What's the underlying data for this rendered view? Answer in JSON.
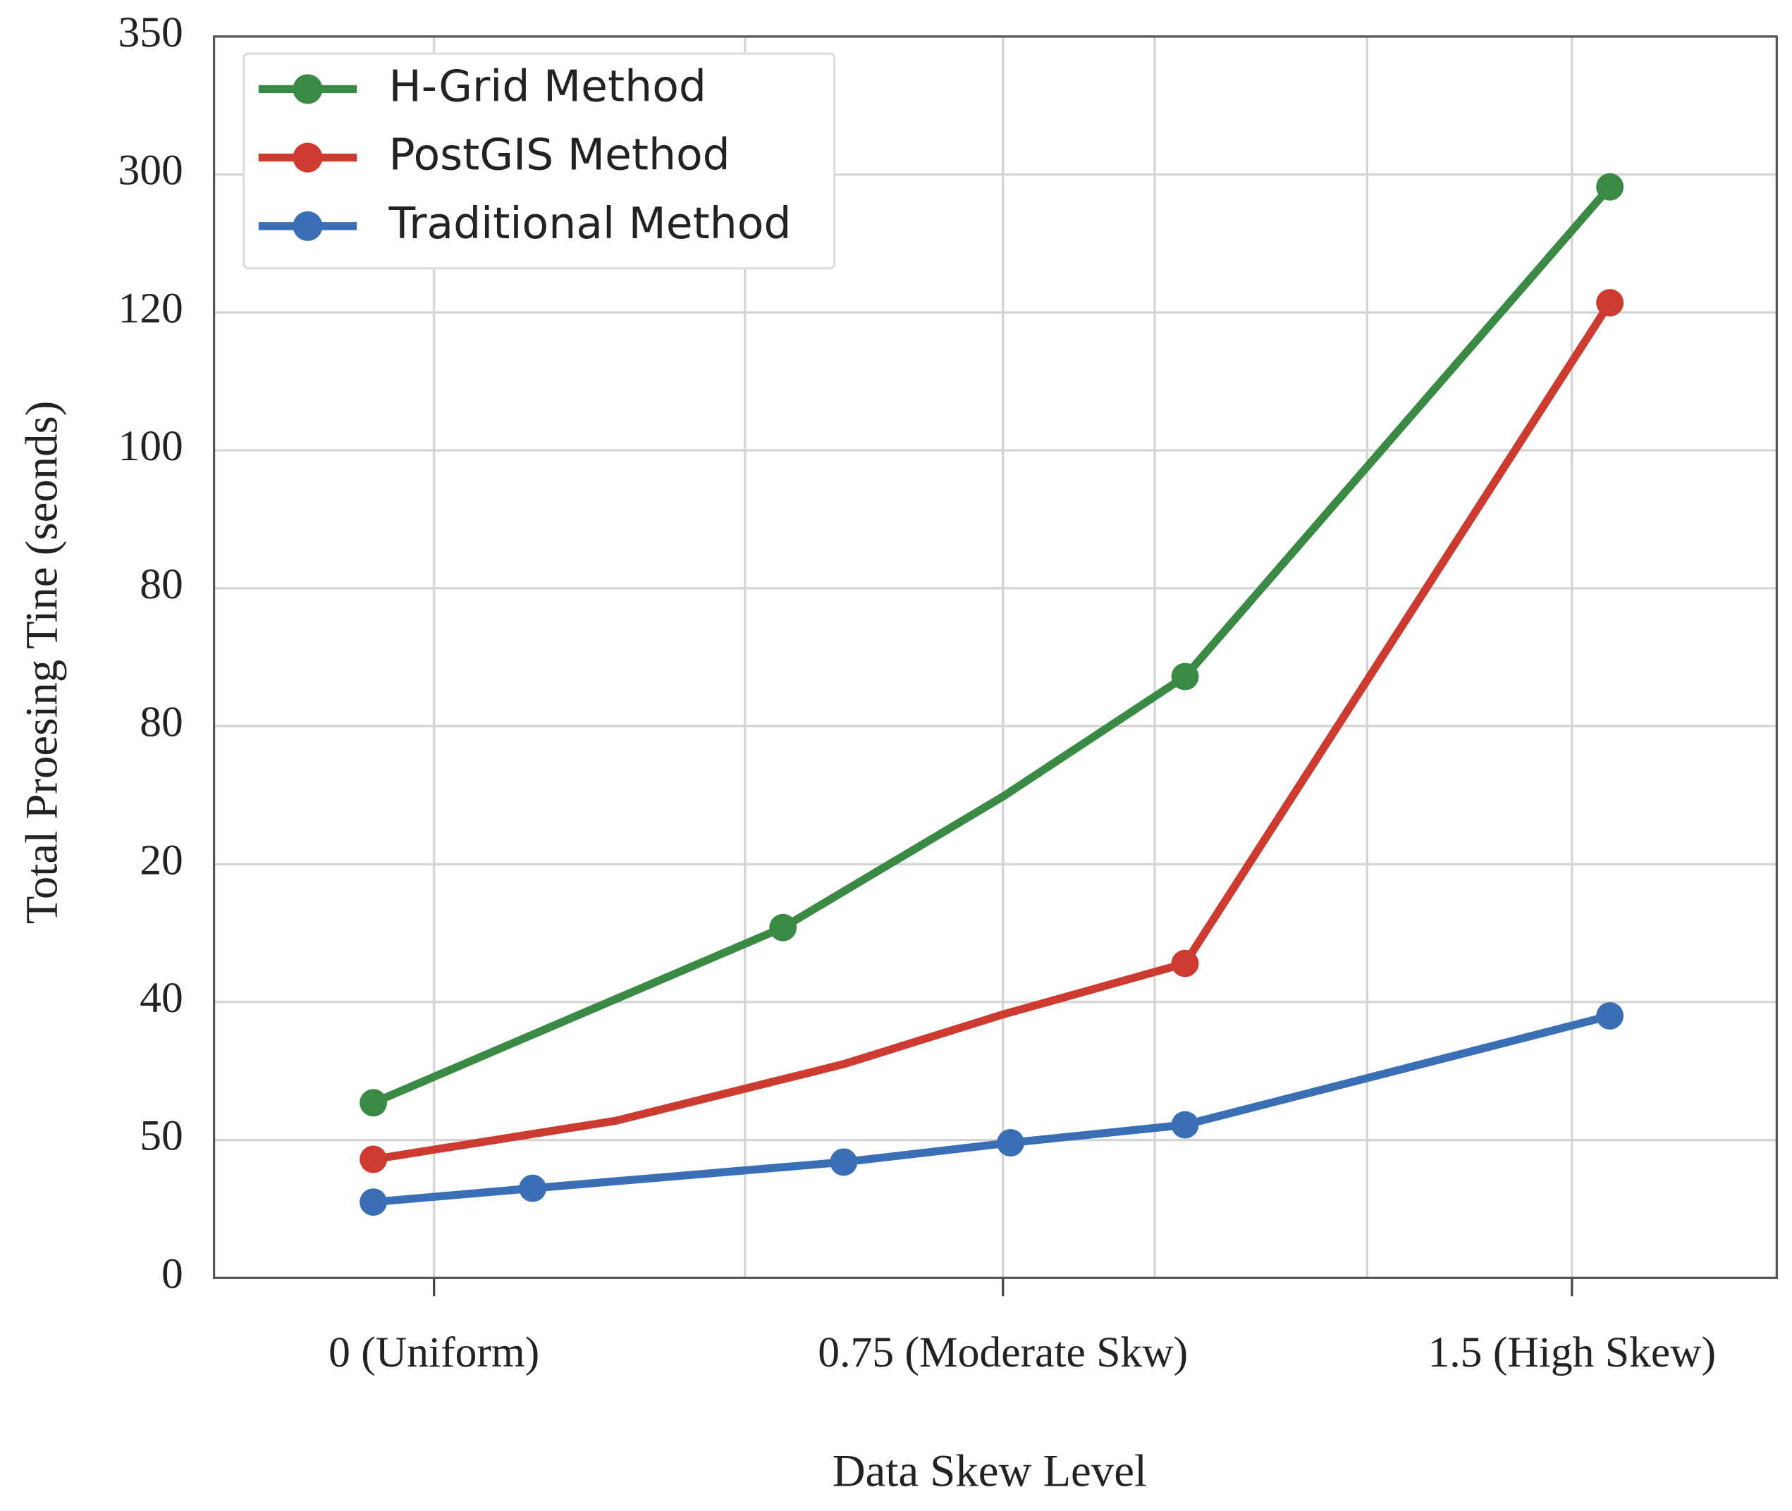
{
  "chart_data": {
    "type": "line",
    "x_label": "Data Skew Level",
    "y_label": "Total Proesing Tine (seonds)",
    "xlim": [
      -0.29,
      1.77
    ],
    "xticks": [
      {
        "value": 0,
        "label": "0 (Uniform)"
      },
      {
        "value": 0.41,
        "label": null
      },
      {
        "value": 0.75,
        "label": "0.75 (Moderate Skw)"
      },
      {
        "value": 0.95,
        "label": null
      },
      {
        "value": 1.23,
        "label": null
      },
      {
        "value": 1.5,
        "label": "1.5 (High Skew)"
      }
    ],
    "ylim": [
      0,
      9
    ],
    "yticks": [
      0,
      {
        "value": 1,
        "label": "50"
      },
      {
        "value": 2,
        "label": "40"
      },
      {
        "value": 3,
        "label": "20"
      },
      {
        "value": 4,
        "label": "80"
      },
      {
        "value": 5,
        "label": "80"
      },
      {
        "value": 6,
        "label": "100"
      },
      {
        "value": 7,
        "label": "120"
      },
      {
        "value": 8,
        "label": "300"
      },
      {
        "value": 9,
        "label": "350"
      }
    ],
    "grid": true,
    "legend": "upper left",
    "series": [
      {
        "name": "H-Grid Method",
        "color": "#3a8a45",
        "x": [
          -0.08,
          0.46,
          0.75,
          0.99,
          1.55
        ],
        "values": [
          1.27,
          2.54,
          3.49,
          4.36,
          7.91
        ],
        "markers": [
          true,
          true,
          false,
          true,
          true
        ]
      },
      {
        "name": "PostGIS Method",
        "color": "#cc3a30",
        "x": [
          -0.08,
          0.24,
          0.54,
          0.75,
          0.99,
          1.55
        ],
        "values": [
          0.86,
          1.14,
          1.55,
          1.91,
          2.28,
          7.07
        ],
        "markers": [
          true,
          false,
          false,
          false,
          true,
          true
        ]
      },
      {
        "name": "Traditional Method",
        "color": "#3a6fb5",
        "x": [
          -0.08,
          0.13,
          0.54,
          0.76,
          0.99,
          1.55
        ],
        "values": [
          0.55,
          0.65,
          0.84,
          0.98,
          1.11,
          1.9
        ],
        "markers": [
          true,
          true,
          true,
          true,
          true,
          true
        ]
      }
    ]
  }
}
